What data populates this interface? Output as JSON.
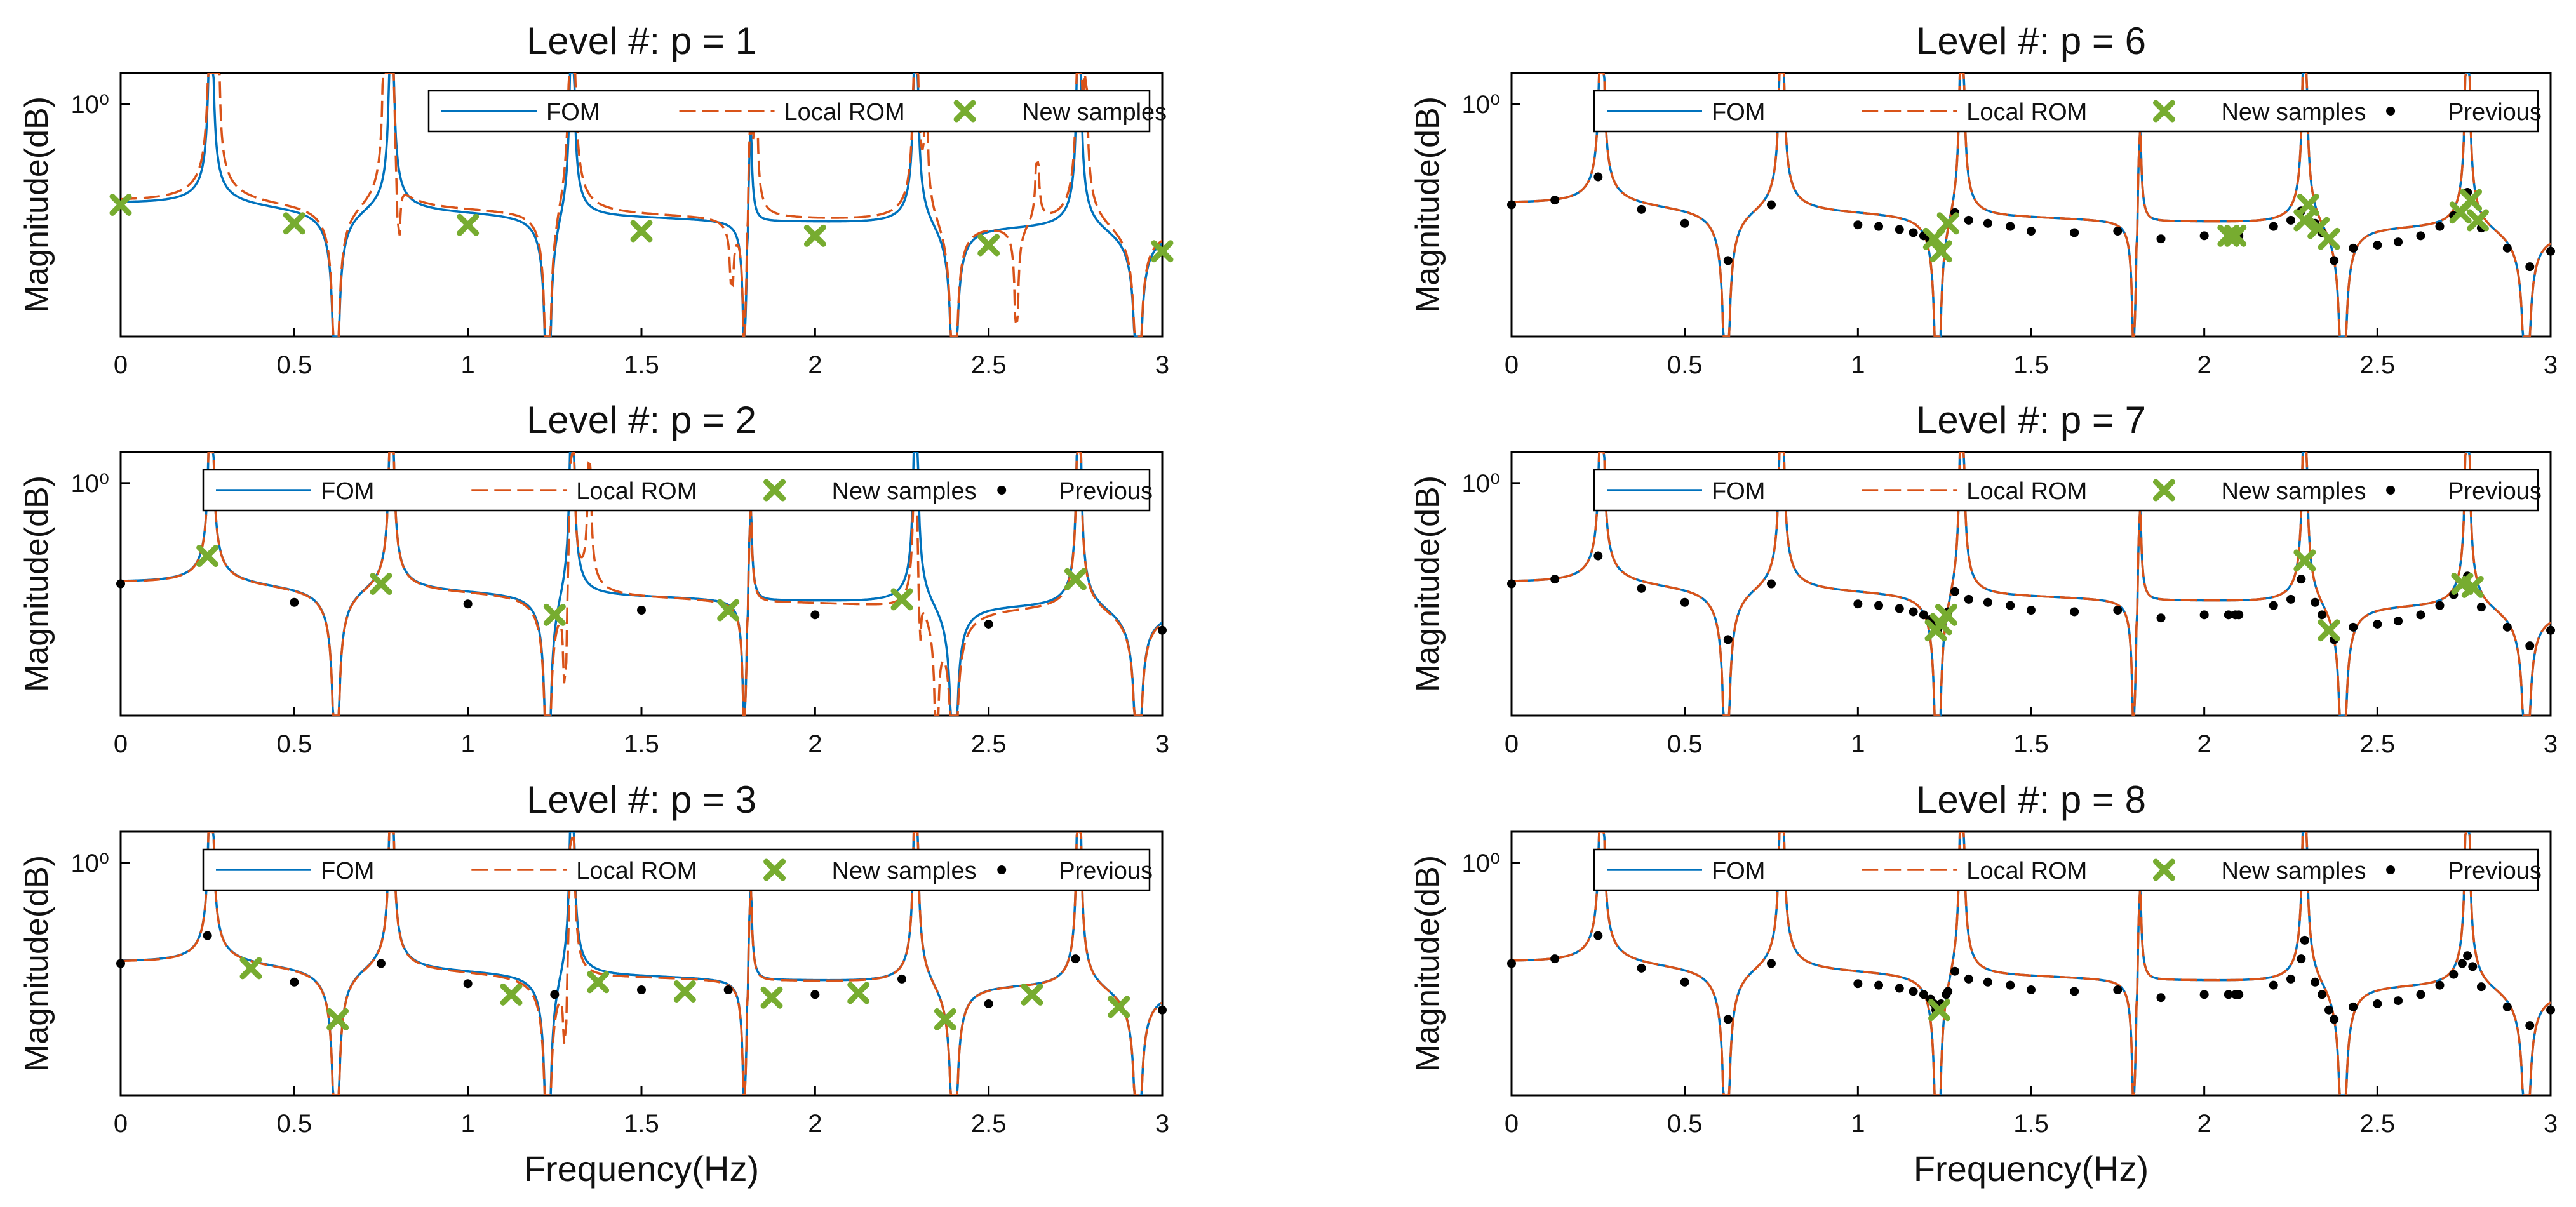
{
  "figure": {
    "xlabel": "Frequency(Hz)"
  },
  "colors": {
    "fom": "#0072BD",
    "rom": "#D95319",
    "new": "#77AC30",
    "prev": "#000000",
    "axis": "#000000"
  },
  "legend_labels": {
    "fom": "FOM",
    "rom": "Local ROM",
    "new": "New samples",
    "prev": "Previous"
  },
  "chart_data": [
    {
      "type": "line",
      "title": "Level #: p = 1",
      "ylabel": "Magnitude(dB)",
      "xlim": [
        0,
        3
      ],
      "xticks": [
        "0",
        "0.5",
        "1",
        "1.5",
        "2",
        "2.5",
        "3"
      ],
      "ytick_label": "10⁰",
      "legend": [
        "FOM",
        "Local ROM",
        "New samples"
      ],
      "series": [
        {
          "name": "FOM"
        },
        {
          "name": "Local ROM"
        }
      ],
      "new_samples": [
        [
          0,
          0.0
        ],
        [
          0.5,
          -0.12
        ],
        [
          1,
          -0.13
        ],
        [
          1.5,
          -0.17
        ],
        [
          2,
          -0.2
        ],
        [
          2.5,
          -0.26
        ],
        [
          3,
          -0.3
        ]
      ],
      "previous": []
    },
    {
      "type": "line",
      "title": "Level #: p = 2",
      "ylabel": "Magnitude(dB)",
      "xlim": [
        0,
        3
      ],
      "xticks": [
        "0",
        "0.5",
        "1",
        "1.5",
        "2",
        "2.5",
        "3"
      ],
      "ytick_label": "10⁰",
      "legend": [
        "FOM",
        "Local ROM",
        "New samples",
        "Previous"
      ],
      "series": [
        {
          "name": "FOM"
        },
        {
          "name": "Local ROM"
        }
      ],
      "new_samples": [
        [
          0.25,
          0.18
        ],
        [
          0.75,
          0.0
        ],
        [
          1.25,
          -0.2
        ],
        [
          1.75,
          -0.17
        ],
        [
          2.25,
          -0.1
        ],
        [
          2.75,
          0.03
        ]
      ],
      "previous": [
        [
          0,
          0.0
        ],
        [
          0.5,
          -0.12
        ],
        [
          1,
          -0.13
        ],
        [
          1.5,
          -0.17
        ],
        [
          2,
          -0.2
        ],
        [
          2.5,
          -0.26
        ],
        [
          3,
          -0.3
        ]
      ]
    },
    {
      "type": "line",
      "title": "Level #: p = 3",
      "ylabel": "Magnitude(dB)",
      "xlim": [
        0,
        3
      ],
      "xticks": [
        "0",
        "0.5",
        "1",
        "1.5",
        "2",
        "2.5",
        "3"
      ],
      "ytick_label": "10⁰",
      "legend": [
        "FOM",
        "Local ROM",
        "New samples",
        "Previous"
      ],
      "series": [
        {
          "name": "FOM"
        },
        {
          "name": "Local ROM"
        }
      ],
      "new_samples": [
        [
          0.375,
          -0.03
        ],
        [
          0.625,
          -0.36
        ],
        [
          1.125,
          -0.2
        ],
        [
          1.375,
          -0.12
        ],
        [
          1.625,
          -0.18
        ],
        [
          1.875,
          -0.22
        ],
        [
          2.125,
          -0.19
        ],
        [
          2.375,
          -0.36
        ],
        [
          2.625,
          -0.2
        ],
        [
          2.875,
          -0.28
        ]
      ],
      "previous": [
        [
          0,
          0.0
        ],
        [
          0.25,
          0.18
        ],
        [
          0.5,
          -0.12
        ],
        [
          0.75,
          0.0
        ],
        [
          1,
          -0.13
        ],
        [
          1.25,
          -0.2
        ],
        [
          1.5,
          -0.17
        ],
        [
          1.75,
          -0.17
        ],
        [
          2,
          -0.2
        ],
        [
          2.25,
          -0.1
        ],
        [
          2.5,
          -0.26
        ],
        [
          2.75,
          0.03
        ],
        [
          3,
          -0.3
        ]
      ]
    },
    {
      "type": "line",
      "title": "Level #: p = 6",
      "ylabel": "Magnitude(dB)",
      "xlim": [
        0,
        3
      ],
      "xticks": [
        "0",
        "0.5",
        "1",
        "1.5",
        "2",
        "2.5",
        "3"
      ],
      "ytick_label": "10⁰",
      "legend": [
        "FOM",
        "Local ROM",
        "New samples",
        "Previous"
      ],
      "series": [
        {
          "name": "FOM"
        },
        {
          "name": "Local ROM"
        }
      ],
      "new_samples": [
        [
          1.22,
          -0.22
        ],
        [
          1.24,
          -0.3
        ],
        [
          1.26,
          -0.12
        ],
        [
          2.07,
          -0.2
        ],
        [
          2.09,
          -0.2
        ],
        [
          2.29,
          -0.1
        ],
        [
          2.3,
          0.0
        ],
        [
          2.33,
          -0.15
        ],
        [
          2.36,
          -0.22
        ],
        [
          2.74,
          -0.05
        ],
        [
          2.77,
          0.03
        ],
        [
          2.79,
          -0.1
        ]
      ],
      "previous": [
        [
          0,
          0.0
        ],
        [
          0.125,
          0.03
        ],
        [
          0.25,
          0.18
        ],
        [
          0.375,
          -0.03
        ],
        [
          0.5,
          -0.12
        ],
        [
          0.625,
          -0.36
        ],
        [
          0.75,
          0.0
        ],
        [
          1,
          -0.13
        ],
        [
          1.06,
          -0.14
        ],
        [
          1.12,
          -0.16
        ],
        [
          1.16,
          -0.18
        ],
        [
          1.19,
          -0.2
        ],
        [
          1.21,
          -0.23
        ],
        [
          1.28,
          -0.05
        ],
        [
          1.32,
          -0.1
        ],
        [
          1.375,
          -0.12
        ],
        [
          1.44,
          -0.14
        ],
        [
          1.5,
          -0.17
        ],
        [
          1.625,
          -0.18
        ],
        [
          1.75,
          -0.17
        ],
        [
          1.875,
          -0.22
        ],
        [
          2,
          -0.2
        ],
        [
          2.1,
          -0.2
        ],
        [
          2.2,
          -0.14
        ],
        [
          2.25,
          -0.1
        ],
        [
          2.28,
          -0.04
        ],
        [
          2.32,
          -0.12
        ],
        [
          2.34,
          -0.18
        ],
        [
          2.375,
          -0.36
        ],
        [
          2.43,
          -0.28
        ],
        [
          2.5,
          -0.26
        ],
        [
          2.56,
          -0.24
        ],
        [
          2.625,
          -0.2
        ],
        [
          2.68,
          -0.14
        ],
        [
          2.72,
          -0.07
        ],
        [
          2.76,
          0.08
        ],
        [
          2.8,
          -0.15
        ],
        [
          2.875,
          -0.28
        ],
        [
          2.94,
          -0.4
        ],
        [
          3,
          -0.3
        ]
      ]
    },
    {
      "type": "line",
      "title": "Level #: p = 7",
      "ylabel": "Magnitude(dB)",
      "xlim": [
        0,
        3
      ],
      "xticks": [
        "0",
        "0.5",
        "1",
        "1.5",
        "2",
        "2.5",
        "3"
      ],
      "ytick_label": "10⁰",
      "legend": [
        "FOM",
        "Local ROM",
        "New samples",
        "Previous"
      ],
      "series": [
        {
          "name": "FOM"
        },
        {
          "name": "Local ROM"
        }
      ],
      "new_samples": [
        [
          1.225,
          -0.3
        ],
        [
          1.24,
          -0.26
        ],
        [
          1.255,
          -0.2
        ],
        [
          2.29,
          0.15
        ],
        [
          2.36,
          -0.3
        ],
        [
          2.745,
          0.0
        ],
        [
          2.775,
          -0.02
        ]
      ],
      "previous": [
        [
          0,
          0.0
        ],
        [
          0.125,
          0.03
        ],
        [
          0.25,
          0.18
        ],
        [
          0.375,
          -0.03
        ],
        [
          0.5,
          -0.12
        ],
        [
          0.625,
          -0.36
        ],
        [
          0.75,
          0.0
        ],
        [
          1,
          -0.13
        ],
        [
          1.06,
          -0.14
        ],
        [
          1.12,
          -0.16
        ],
        [
          1.16,
          -0.18
        ],
        [
          1.19,
          -0.2
        ],
        [
          1.21,
          -0.23
        ],
        [
          1.22,
          -0.26
        ],
        [
          1.23,
          -0.3
        ],
        [
          1.26,
          -0.18
        ],
        [
          1.28,
          -0.05
        ],
        [
          1.32,
          -0.1
        ],
        [
          1.375,
          -0.12
        ],
        [
          1.44,
          -0.14
        ],
        [
          1.5,
          -0.17
        ],
        [
          1.625,
          -0.18
        ],
        [
          1.75,
          -0.17
        ],
        [
          1.875,
          -0.22
        ],
        [
          2,
          -0.2
        ],
        [
          2.07,
          -0.2
        ],
        [
          2.09,
          -0.2
        ],
        [
          2.1,
          -0.2
        ],
        [
          2.2,
          -0.14
        ],
        [
          2.25,
          -0.1
        ],
        [
          2.28,
          0.03
        ],
        [
          2.32,
          -0.12
        ],
        [
          2.34,
          -0.2
        ],
        [
          2.375,
          -0.36
        ],
        [
          2.43,
          -0.28
        ],
        [
          2.5,
          -0.26
        ],
        [
          2.56,
          -0.24
        ],
        [
          2.625,
          -0.2
        ],
        [
          2.68,
          -0.14
        ],
        [
          2.72,
          -0.07
        ],
        [
          2.76,
          0.05
        ],
        [
          2.8,
          -0.15
        ],
        [
          2.875,
          -0.28
        ],
        [
          2.94,
          -0.4
        ],
        [
          3,
          -0.3
        ]
      ]
    },
    {
      "type": "line",
      "title": "Level #: p = 8",
      "ylabel": "Magnitude(dB)",
      "xlim": [
        0,
        3
      ],
      "xticks": [
        "0",
        "0.5",
        "1",
        "1.5",
        "2",
        "2.5",
        "3"
      ],
      "ytick_label": "10⁰",
      "legend": [
        "FOM",
        "Local ROM",
        "New samples",
        "Previous"
      ],
      "series": [
        {
          "name": "FOM"
        },
        {
          "name": "Local ROM"
        }
      ],
      "new_samples": [
        [
          1.235,
          -0.3
        ]
      ],
      "previous": [
        [
          0,
          0.0
        ],
        [
          0.125,
          0.03
        ],
        [
          0.25,
          0.18
        ],
        [
          0.375,
          -0.03
        ],
        [
          0.5,
          -0.12
        ],
        [
          0.625,
          -0.36
        ],
        [
          0.75,
          0.0
        ],
        [
          1,
          -0.13
        ],
        [
          1.06,
          -0.14
        ],
        [
          1.12,
          -0.16
        ],
        [
          1.16,
          -0.18
        ],
        [
          1.19,
          -0.2
        ],
        [
          1.21,
          -0.23
        ],
        [
          1.22,
          -0.26
        ],
        [
          1.225,
          -0.3
        ],
        [
          1.24,
          -0.26
        ],
        [
          1.255,
          -0.2
        ],
        [
          1.26,
          -0.18
        ],
        [
          1.28,
          -0.05
        ],
        [
          1.32,
          -0.1
        ],
        [
          1.375,
          -0.12
        ],
        [
          1.44,
          -0.14
        ],
        [
          1.5,
          -0.17
        ],
        [
          1.625,
          -0.18
        ],
        [
          1.75,
          -0.17
        ],
        [
          1.875,
          -0.22
        ],
        [
          2,
          -0.2
        ],
        [
          2.07,
          -0.2
        ],
        [
          2.09,
          -0.2
        ],
        [
          2.1,
          -0.2
        ],
        [
          2.2,
          -0.14
        ],
        [
          2.25,
          -0.1
        ],
        [
          2.28,
          0.03
        ],
        [
          2.29,
          0.15
        ],
        [
          2.32,
          -0.12
        ],
        [
          2.34,
          -0.2
        ],
        [
          2.36,
          -0.3
        ],
        [
          2.375,
          -0.36
        ],
        [
          2.43,
          -0.28
        ],
        [
          2.5,
          -0.26
        ],
        [
          2.56,
          -0.24
        ],
        [
          2.625,
          -0.2
        ],
        [
          2.68,
          -0.14
        ],
        [
          2.72,
          -0.07
        ],
        [
          2.745,
          0.0
        ],
        [
          2.76,
          0.05
        ],
        [
          2.775,
          -0.02
        ],
        [
          2.8,
          -0.15
        ],
        [
          2.875,
          -0.28
        ],
        [
          2.94,
          -0.4
        ],
        [
          3,
          -0.3
        ]
      ]
    }
  ]
}
